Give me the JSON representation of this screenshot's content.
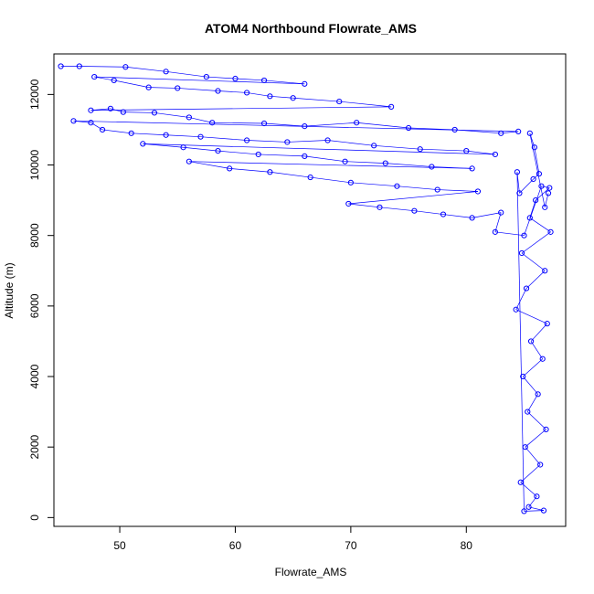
{
  "chart_data": {
    "type": "scatter",
    "title": "ATOM4 Northbound Flowrate_AMS",
    "xlabel": "Flowrate_AMS",
    "ylabel": "Altitude (m)",
    "xlim": [
      44.3,
      88.6
    ],
    "ylim": [
      -250,
      13150
    ],
    "x_ticks": [
      50,
      60,
      70,
      80
    ],
    "y_ticks": [
      0,
      2000,
      4000,
      6000,
      8000,
      10000,
      12000
    ],
    "grid": false,
    "legend": "none",
    "marker": "open-circle",
    "connected_by_lines": true,
    "series_color": "#0000ff",
    "approx_points": [
      [
        44.9,
        12800
      ],
      [
        46.5,
        12800
      ],
      [
        50.5,
        12780
      ],
      [
        54,
        12650
      ],
      [
        57.5,
        12500
      ],
      [
        60,
        12450
      ],
      [
        62.5,
        12400
      ],
      [
        66,
        12300
      ],
      [
        47.8,
        12500
      ],
      [
        49.5,
        12400
      ],
      [
        52.5,
        12200
      ],
      [
        55,
        12180
      ],
      [
        58.5,
        12100
      ],
      [
        61,
        12050
      ],
      [
        63,
        11950
      ],
      [
        65,
        11900
      ],
      [
        69,
        11800
      ],
      [
        73.5,
        11650
      ],
      [
        47.5,
        11550
      ],
      [
        49.2,
        11600
      ],
      [
        50.3,
        11500
      ],
      [
        53,
        11480
      ],
      [
        56,
        11350
      ],
      [
        58,
        11200
      ],
      [
        62.5,
        11180
      ],
      [
        66,
        11100
      ],
      [
        70.5,
        11200
      ],
      [
        75,
        11050
      ],
      [
        79,
        11000
      ],
      [
        83,
        10900
      ],
      [
        84.5,
        10950
      ],
      [
        46,
        11250
      ],
      [
        47.5,
        11200
      ],
      [
        48.5,
        11000
      ],
      [
        51,
        10900
      ],
      [
        54,
        10850
      ],
      [
        57,
        10800
      ],
      [
        61,
        10700
      ],
      [
        64.5,
        10650
      ],
      [
        68,
        10700
      ],
      [
        72,
        10550
      ],
      [
        76,
        10450
      ],
      [
        80,
        10400
      ],
      [
        82.5,
        10300
      ],
      [
        52,
        10600
      ],
      [
        55.5,
        10500
      ],
      [
        58.5,
        10400
      ],
      [
        62,
        10300
      ],
      [
        66,
        10250
      ],
      [
        69.5,
        10100
      ],
      [
        73,
        10050
      ],
      [
        77,
        9950
      ],
      [
        80.5,
        9900
      ],
      [
        56,
        10100
      ],
      [
        59.5,
        9900
      ],
      [
        63,
        9800
      ],
      [
        66.5,
        9650
      ],
      [
        70,
        9500
      ],
      [
        74,
        9400
      ],
      [
        77.5,
        9300
      ],
      [
        81,
        9250
      ],
      [
        69.8,
        8900
      ],
      [
        72.5,
        8800
      ],
      [
        75.5,
        8700
      ],
      [
        78,
        8600
      ],
      [
        80.5,
        8500
      ],
      [
        83,
        8650
      ],
      [
        82.5,
        8100
      ],
      [
        85,
        8000
      ],
      [
        86.5,
        9400
      ],
      [
        87.2,
        9350
      ],
      [
        86,
        9000
      ],
      [
        85.5,
        8500
      ],
      [
        87.3,
        8100
      ],
      [
        84.8,
        7500
      ],
      [
        86.8,
        7000
      ],
      [
        85.2,
        6500
      ],
      [
        84.3,
        5900
      ],
      [
        87,
        5500
      ],
      [
        85.6,
        5000
      ],
      [
        86.6,
        4500
      ],
      [
        84.9,
        4000
      ],
      [
        86.2,
        3500
      ],
      [
        85.3,
        3000
      ],
      [
        86.9,
        2500
      ],
      [
        85.1,
        2000
      ],
      [
        86.4,
        1500
      ],
      [
        84.7,
        1000
      ],
      [
        86.1,
        600
      ],
      [
        85.4,
        300
      ],
      [
        86.7,
        200
      ],
      [
        85,
        180
      ],
      [
        84.4,
        9800
      ],
      [
        84.6,
        9200
      ],
      [
        85.8,
        9600
      ],
      [
        86.3,
        9750
      ],
      [
        85.9,
        10500
      ],
      [
        85.5,
        10900
      ],
      [
        86.8,
        8800
      ],
      [
        87.1,
        9200
      ]
    ]
  }
}
